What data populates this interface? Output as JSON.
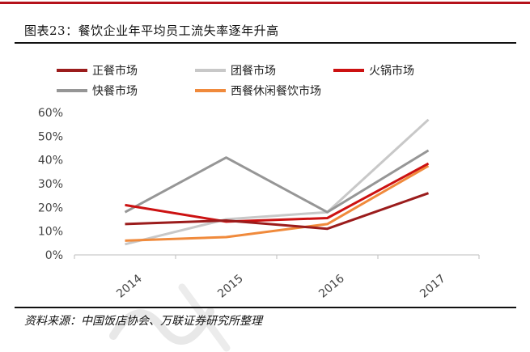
{
  "figure": {
    "title": "图表23：餐饮企业年平均员工流失率逐年升高",
    "source": "资料来源：中国饭店协会、万联证券研究所整理"
  },
  "colors": {
    "accent": "#b5121b",
    "rule": "#111111"
  },
  "chart_data": {
    "type": "line",
    "title": "图表23：餐饮企业年平均员工流失率逐年升高",
    "xlabel": "",
    "ylabel": "",
    "categories": [
      "2014",
      "2015",
      "2016",
      "2017"
    ],
    "ylim": [
      0,
      60
    ],
    "yticks": [
      "0%",
      "10%",
      "20%",
      "30%",
      "40%",
      "50%",
      "60%"
    ],
    "ytick_values": [
      0,
      10,
      20,
      30,
      40,
      50,
      60
    ],
    "grid": false,
    "legend_position": "top",
    "series": [
      {
        "name": "正餐市场",
        "color": "#9b1c1c",
        "values": [
          13,
          14.5,
          11,
          26
        ]
      },
      {
        "name": "团餐市场",
        "color": "#c8c8c8",
        "values": [
          4.5,
          15,
          18,
          57
        ]
      },
      {
        "name": "火锅市场",
        "color": "#cc1111",
        "values": [
          21,
          14,
          15.5,
          38.5
        ]
      },
      {
        "name": "快餐市场",
        "color": "#969696",
        "values": [
          18,
          41,
          18,
          44
        ]
      },
      {
        "name": "西餐休闲餐饮市场",
        "color": "#f08a3c",
        "values": [
          6,
          7.5,
          13,
          37.5
        ]
      }
    ]
  }
}
